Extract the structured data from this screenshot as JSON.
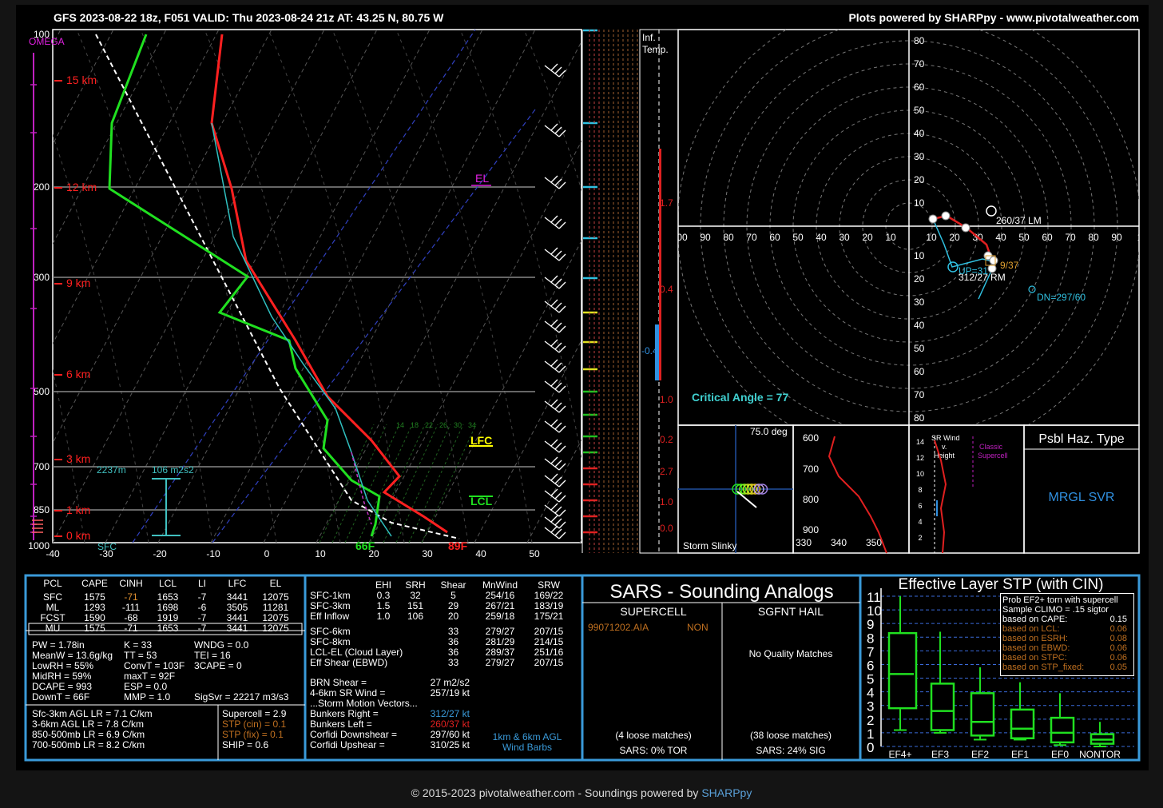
{
  "header": {
    "title": "GFS 2023-08-22 18z, F051  VALID: Thu 2023-08-24 21z  AT: 43.25 N, 80.75 W",
    "credit": "Plots powered by SHARPpy - www.pivotalweather.com"
  },
  "skewt": {
    "omega_label": "OMEGA",
    "pressure_ticks": [
      "100",
      "200",
      "300",
      "500",
      "700",
      "850",
      "1000"
    ],
    "height_labels": [
      "15 km",
      "12 km",
      "9 km",
      "6 km",
      "3 km",
      "1 km",
      "0 km"
    ],
    "temp_ticks": [
      "-40",
      "-30",
      "-20",
      "-10",
      "0",
      "10",
      "20",
      "30",
      "40",
      "50"
    ],
    "el": "EL",
    "lfc": "LFC",
    "lcl": "LCL",
    "sfc": "SFC",
    "sfc_dew": "66F",
    "sfc_temp": "89F",
    "eff_inflow_depth": "2237m",
    "eff_inflow_srh": "106 m2s2",
    "isotherm_labels": [
      "14",
      "18",
      "22",
      "26",
      "30",
      "34"
    ],
    "infl_label": "Inf.\nTemp.",
    "omega_values": [
      "1.7",
      "0.4",
      "-0.4",
      "1.0",
      "0.2",
      "2.7",
      "1.0",
      "0.0"
    ]
  },
  "hodograph": {
    "rings": [
      "10",
      "20",
      "30",
      "40",
      "50",
      "60",
      "70",
      "80"
    ],
    "xticks_left": [
      "00",
      "90",
      "80",
      "70",
      "60",
      "50",
      "40",
      "30",
      "20",
      "10"
    ],
    "xticks_right": [
      "10",
      "20",
      "30",
      "40",
      "50",
      "60",
      "70",
      "80",
      "90",
      "1"
    ],
    "lm": "260/37 LM",
    "rm": "312/27 RM",
    "up": "UP=31",
    "right_label": "9/37",
    "dn": "DN=297/60",
    "critical_angle": "Critical Angle = 77"
  },
  "slinky": {
    "label": "Storm Slinky",
    "deg": "75.0 deg"
  },
  "theta": {
    "yticks": [
      "600",
      "700",
      "800",
      "900"
    ],
    "xticks": [
      "330",
      "340",
      "350"
    ]
  },
  "srwind": {
    "title": "SR Wind\nv.\nHeight",
    "classic": "Classic\nSupercell",
    "yticks": [
      "14",
      "12",
      "10",
      "8",
      "6",
      "4",
      "2"
    ]
  },
  "hazard": {
    "title": "Psbl Haz. Type",
    "value": "MRGL SVR"
  },
  "parcels": {
    "headers": [
      "PCL",
      "CAPE",
      "CINH",
      "LCL",
      "LI",
      "LFC",
      "EL"
    ],
    "rows": [
      [
        "SFC",
        "1575",
        "-71",
        "1653",
        "-7",
        "3441",
        "12075"
      ],
      [
        "ML",
        "1293",
        "-111",
        "1698",
        "-6",
        "3505",
        "11281"
      ],
      [
        "FCST",
        "1590",
        "-68",
        "1919",
        "-7",
        "3441",
        "12075"
      ],
      [
        "MU",
        "1575",
        "-71",
        "1653",
        "-7",
        "3441",
        "12075"
      ]
    ]
  },
  "indices": {
    "col1": [
      "PW = 1.78in",
      "MeanW = 13.6g/kg",
      "LowRH = 55%",
      "MidRH = 59%",
      "DCAPE = 993",
      "DownT = 66F"
    ],
    "col2": [
      "K = 33",
      "TT = 53",
      "ConvT = 103F",
      "maxT = 92F",
      "ESP = 0.0",
      "MMP = 1.0"
    ],
    "col3": [
      "WNDG = 0.0",
      "TEI = 16",
      "3CAPE = 0",
      "",
      "",
      "SigSvr = 22217 m3/s3"
    ],
    "lapse": [
      "Sfc-3km AGL LR = 7.1 C/km",
      "3-6km AGL LR = 7.8 C/km",
      "850-500mb LR = 6.9 C/km",
      "700-500mb LR = 8.2 C/km"
    ],
    "comp": [
      "Supercell = 2.9",
      "STP (cin) = 0.1",
      "STP (fix) = 0.1",
      "SHIP = 0.6"
    ]
  },
  "kinematics": {
    "headers": [
      "EHI",
      "SRH",
      "Shear",
      "MnWind",
      "SRW"
    ],
    "rows1": [
      [
        "SFC-1km",
        "0.3",
        "32",
        "5",
        "254/16",
        "169/22"
      ],
      [
        "SFC-3km",
        "1.5",
        "151",
        "29",
        "267/21",
        "183/19"
      ],
      [
        "Eff Inflow",
        "1.0",
        "106",
        "20",
        "259/18",
        "175/21"
      ]
    ],
    "rows2": [
      [
        "SFC-6km",
        "",
        "",
        "33",
        "279/27",
        "207/15"
      ],
      [
        "SFC-8km",
        "",
        "",
        "36",
        "281/29",
        "214/15"
      ],
      [
        "LCL-EL (Cloud Layer)",
        "",
        "",
        "36",
        "289/37",
        "251/16"
      ],
      [
        "Eff Shear (EBWD)",
        "",
        "",
        "33",
        "279/27",
        "207/15"
      ]
    ],
    "brn": "BRN Shear =",
    "brn_val": "27 m2/s2",
    "sr46": "4-6km SR Wind =",
    "sr46_val": "257/19 kt",
    "smv": "...Storm Motion Vectors...",
    "bunk_r": "Bunkers Right =",
    "bunk_r_val": "312/27 kt",
    "bunk_l": "Bunkers Left =",
    "bunk_l_val": "260/37 kt",
    "cor_dn": "Corfidi Downshear =",
    "cor_dn_val": "297/60 kt",
    "cor_up": "Corfidi Upshear =",
    "cor_up_val": "310/25 kt",
    "barb_label": "1km & 6km AGL\nWind Barbs"
  },
  "sars": {
    "title": "SARS - Sounding Analogs",
    "supercell": "SUPERCELL",
    "hail": "SGFNT HAIL",
    "match": "99071202.AIA",
    "match_type": "NON",
    "no_match": "No Quality Matches",
    "sc_loose": "(4 loose matches)",
    "sc_tor": "SARS: 0% TOR",
    "hail_loose": "(38 loose matches)",
    "hail_sig": "SARS: 24% SIG"
  },
  "stp": {
    "title": "Effective Layer STP (with CIN)",
    "prob_title": "Prob EF2+ torn with supercell",
    "prob_sub": "Sample CLIMO = .15 sigtor",
    "probs": [
      [
        "based on CAPE:",
        "0.15"
      ],
      [
        "based on LCL:",
        "0.06"
      ],
      [
        "based on ESRH:",
        "0.08"
      ],
      [
        "based on EBWD:",
        "0.06"
      ],
      [
        "based on STPC:",
        "0.06"
      ],
      [
        "based on STP_fixed:",
        "0.05"
      ]
    ],
    "yticks": [
      "11",
      "10",
      "9",
      "8",
      "7",
      "6",
      "5",
      "4",
      "3",
      "2",
      "1",
      "0"
    ],
    "categories": [
      "EF4+",
      "EF3",
      "EF2",
      "EF1",
      "EF0",
      "NONTOR"
    ]
  },
  "chart_data": {
    "type": "box",
    "title": "Effective Layer STP (with CIN)",
    "categories": [
      "EF4+",
      "EF3",
      "EF2",
      "EF1",
      "EF0",
      "NONTOR"
    ],
    "ylim": [
      0,
      11
    ],
    "boxes": [
      {
        "low": 1.2,
        "q1": 2.8,
        "median": 5.3,
        "q3": 8.3,
        "high": 11
      },
      {
        "low": 1.0,
        "q1": 1.2,
        "median": 2.6,
        "q3": 4.6,
        "high": 8.4
      },
      {
        "low": 0.5,
        "q1": 0.8,
        "median": 1.8,
        "q3": 3.9,
        "high": 5.8
      },
      {
        "low": 0.5,
        "q1": 0.6,
        "median": 1.3,
        "q3": 2.7,
        "high": 4.7
      },
      {
        "low": 0.1,
        "q1": 0.3,
        "median": 1.0,
        "q3": 2.1,
        "high": 3.9
      },
      {
        "low": 0.0,
        "q1": 0.2,
        "median": 0.5,
        "q3": 0.9,
        "high": 1.8
      }
    ]
  },
  "footer": {
    "text": "© 2015-2023 pivotalweather.com - Soundings powered by ",
    "link": "SHARPpy"
  }
}
